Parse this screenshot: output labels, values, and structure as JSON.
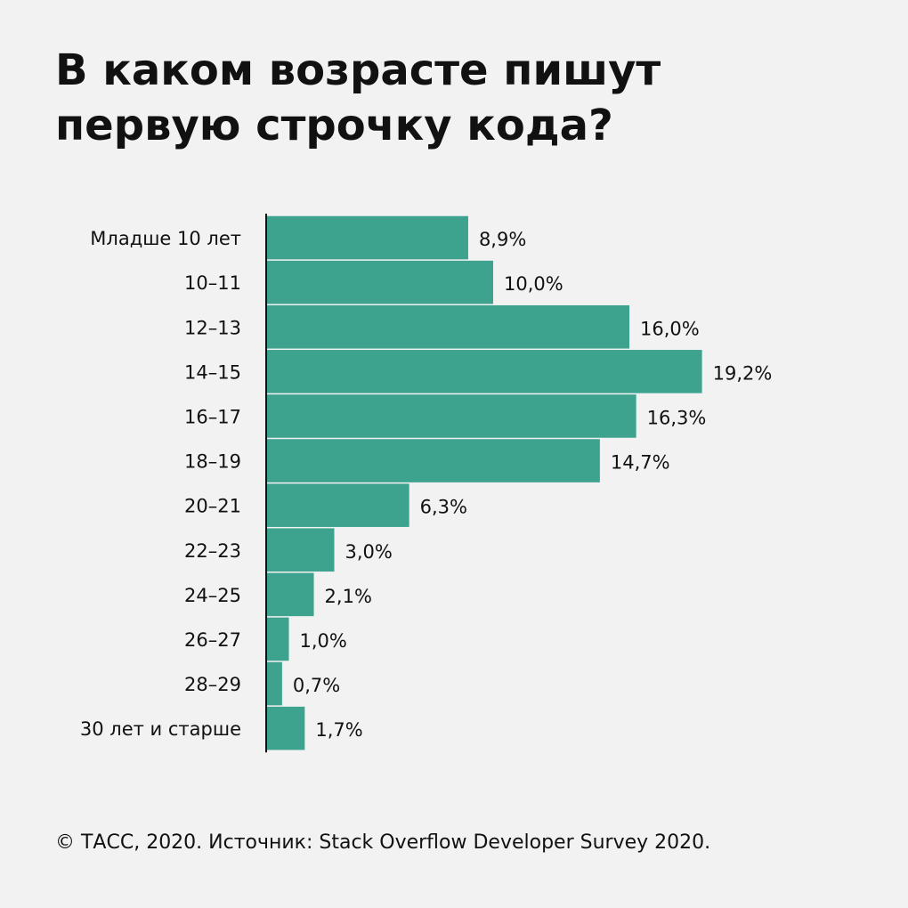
{
  "title": {
    "line1": "В каком возрасте пишут",
    "line2": "первую строчку кода?"
  },
  "footer": {
    "text": "© ТАСС, 2020. Источник: Stack Overflow Developer Survey 2020."
  },
  "colors": {
    "bar": "#3ea38e",
    "background": "#f2f2f2",
    "text": "#111111",
    "axis": "#111111"
  },
  "chart_data": {
    "type": "bar",
    "orientation": "horizontal",
    "categories": [
      "Младше 10 лет",
      "10–11",
      "12–13",
      "14–15",
      "16–17",
      "18–19",
      "20–21",
      "22–23",
      "24–25",
      "26–27",
      "28–29",
      "30 лет и старше"
    ],
    "values": [
      8.9,
      10.0,
      16.0,
      19.2,
      16.3,
      14.7,
      6.3,
      3.0,
      2.1,
      1.0,
      0.7,
      1.7
    ],
    "value_labels": [
      "8,9%",
      "10,0%",
      "16,0%",
      "19,2%",
      "16,3%",
      "14,7%",
      "6,3%",
      "3,0%",
      "2,1%",
      "1,0%",
      "0,7%",
      "1,7%"
    ],
    "unit": "%",
    "grid": false,
    "legend": "none"
  }
}
